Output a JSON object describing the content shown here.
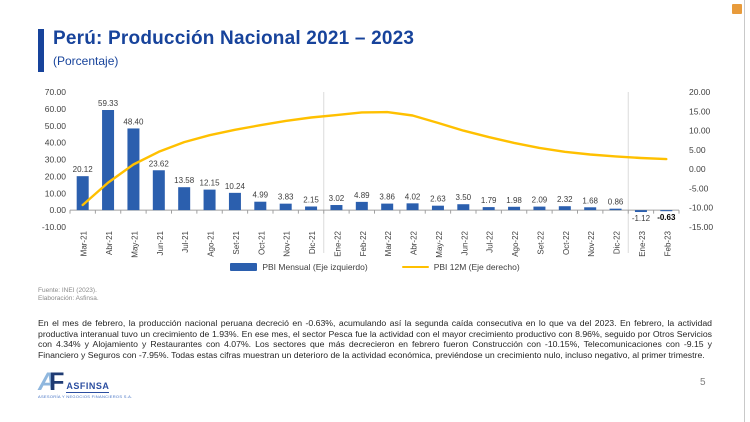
{
  "header": {
    "title": "Perú: Producción Nacional 2021 – 2023",
    "subtitle": "(Porcentaje)"
  },
  "chart_data": {
    "type": "combo-bar-line",
    "categories": [
      "Mar-21",
      "Abr-21",
      "May-21",
      "Jun-21",
      "Jul-21",
      "Ago-21",
      "Set-21",
      "Oct-21",
      "Nov-21",
      "Dic-21",
      "Ene-22",
      "Feb-22",
      "Mar-22",
      "Abr-22",
      "May-22",
      "Jun-22",
      "Jul-22",
      "Ago-22",
      "Set-22",
      "Oct-22",
      "Nov-22",
      "Dic-22",
      "Ene-23",
      "Feb-23"
    ],
    "series": [
      {
        "name": "PBI Mensual (Eje izquierdo)",
        "type": "bar",
        "axis": "left",
        "color": "#2B5FAE",
        "values": [
          20.12,
          59.33,
          48.4,
          23.62,
          13.58,
          12.15,
          10.24,
          4.99,
          3.83,
          2.15,
          3.02,
          4.89,
          3.86,
          4.02,
          2.63,
          3.5,
          1.79,
          1.98,
          2.09,
          2.32,
          1.68,
          0.86,
          -1.12,
          -0.63
        ]
      },
      {
        "name": "PBI 12M (Eje derecho)",
        "type": "line",
        "axis": "right",
        "color": "#FFC000",
        "values_estimated": true,
        "values": [
          -9.3,
          -3.5,
          1.2,
          4.5,
          7.0,
          8.8,
          10.2,
          11.4,
          12.5,
          13.4,
          14.0,
          14.7,
          14.8,
          13.9,
          12.0,
          10.0,
          8.3,
          6.8,
          5.5,
          4.5,
          3.8,
          3.3,
          2.9,
          2.6
        ]
      }
    ],
    "left_axis": {
      "min": -10,
      "max": 70,
      "ticks": [
        70,
        60,
        50,
        40,
        30,
        20,
        10,
        0,
        -10
      ]
    },
    "right_axis": {
      "min": -15,
      "max": 20,
      "ticks": [
        20,
        15,
        10,
        5,
        0,
        -5,
        -10,
        -15
      ]
    },
    "bold_label_index": 23,
    "year_separator_slots": [
      10,
      22
    ],
    "legend_position": "bottom",
    "grid": "year-separators-only"
  },
  "analysis": {
    "text": "En el mes de febrero, la producción nacional peruana decreció en -0.63%, acumulando así la segunda caída consecutiva en lo que va del 2023. En febrero, la actividad productiva interanual tuvo un crecimiento de 1.93%. En ese mes, el sector Pesca fue la actividad con el mayor crecimiento productivo con 8.96%, seguido por Otros Servicios con 4.34% y Alojamiento y Restaurantes con 4.07%. Los sectores que más decrecieron en febrero fueron Construcción con -10.15%, Telecomunicaciones con -9.15 y Financiero y Seguros con -7.95%. Todas estas cifras muestran un deterioro de la actividad económica, previéndose un crecimiento nulo, incluso negativo, al primer trimestre."
  },
  "footer": {
    "source_line1": "Fuente: INEI (2023).",
    "source_line2": "Elaboración: Asfinsa.",
    "page_number": "5",
    "logo": {
      "letter_a": "A",
      "letter_f": "F",
      "name": "ASFINSA",
      "tagline": "ASESORÍA Y NEGOCIOS FINANCIEROS S.A."
    }
  },
  "colors": {
    "brand_blue": "#17439B",
    "bar_blue": "#2B5FAE",
    "line_yellow": "#FFC000",
    "accent_orange": "#E89B3B"
  }
}
